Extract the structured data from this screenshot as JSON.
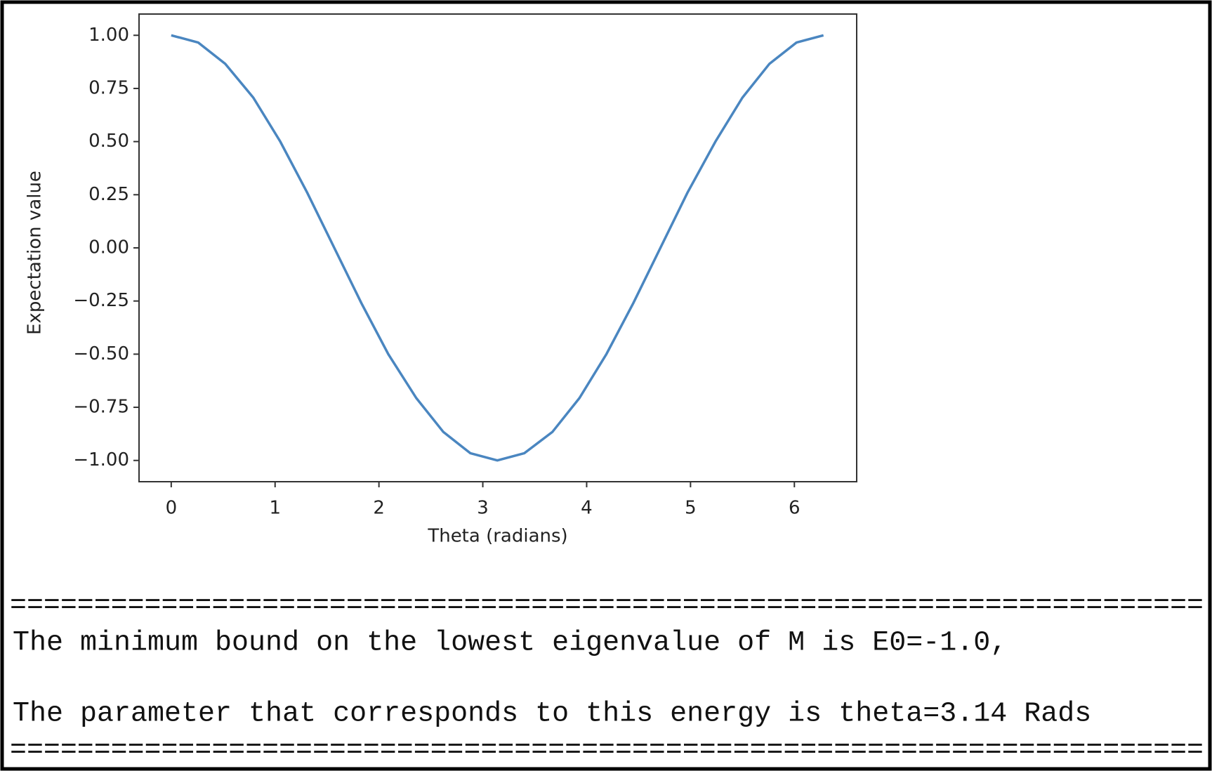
{
  "chart_data": {
    "type": "line",
    "xlabel": "Theta (radians)",
    "ylabel": "Expectation value",
    "x": [
      0,
      0.26,
      0.52,
      0.79,
      1.05,
      1.31,
      1.57,
      1.83,
      2.09,
      2.36,
      2.62,
      2.88,
      3.14,
      3.4,
      3.67,
      3.93,
      4.19,
      4.45,
      4.71,
      4.97,
      5.24,
      5.5,
      5.76,
      6.02,
      6.28
    ],
    "series": [
      {
        "color": "#4a86c0",
        "values": [
          1,
          0.966,
          0.866,
          0.707,
          0.5,
          0.259,
          0,
          -0.259,
          -0.5,
          -0.707,
          -0.866,
          -0.966,
          -1,
          -0.966,
          -0.866,
          -0.707,
          -0.5,
          -0.259,
          0,
          0.259,
          0.5,
          0.707,
          0.866,
          0.966,
          1
        ]
      }
    ],
    "xlim": [
      -0.31,
      6.6
    ],
    "ylim": [
      -1.1,
      1.1
    ],
    "xticks": [
      0,
      1,
      2,
      3,
      4,
      5,
      6
    ],
    "yticks": [
      {
        "value": 1,
        "label": "1.00"
      },
      {
        "value": 0.75,
        "label": "0.75"
      },
      {
        "value": 0.5,
        "label": "0.50"
      },
      {
        "value": 0.25,
        "label": "0.25"
      },
      {
        "value": 0,
        "label": "0.00"
      },
      {
        "value": -0.25,
        "label": "−0.25"
      },
      {
        "value": -0.5,
        "label": "−0.50"
      },
      {
        "value": -0.75,
        "label": "−0.75"
      },
      {
        "value": -1,
        "label": "−1.00"
      }
    ],
    "grid": false
  },
  "output": {
    "separator_top": "=======================================================================",
    "line1": "The minimum bound on the lowest eigenvalue of M is E0=-1.0,",
    "line2": "The parameter that corresponds to this energy is theta=3.14 Rads",
    "separator_bottom": "======================================================================="
  }
}
